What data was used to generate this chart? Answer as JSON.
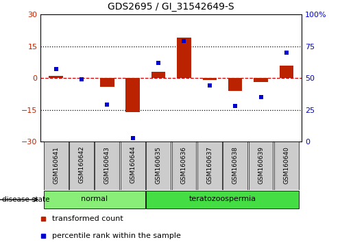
{
  "title": "GDS2695 / GI_31542649-S",
  "samples": [
    "GSM160641",
    "GSM160642",
    "GSM160643",
    "GSM160644",
    "GSM160635",
    "GSM160636",
    "GSM160637",
    "GSM160638",
    "GSM160639",
    "GSM160640"
  ],
  "transformed_count": [
    1.0,
    0.0,
    -4.0,
    -16.0,
    3.0,
    19.0,
    -1.0,
    -6.0,
    -2.0,
    6.0
  ],
  "percentile_rank": [
    57,
    49,
    29,
    3,
    62,
    79,
    44,
    28,
    35,
    70
  ],
  "disease_groups": [
    {
      "label": "normal",
      "indices": [
        0,
        1,
        2,
        3
      ],
      "color": "#88ee77"
    },
    {
      "label": "teratozoospermia",
      "indices": [
        4,
        5,
        6,
        7,
        8,
        9
      ],
      "color": "#44dd44"
    }
  ],
  "left_ylim": [
    -30,
    30
  ],
  "left_yticks": [
    -30,
    -15,
    0,
    15,
    30
  ],
  "right_ylim": [
    0,
    100
  ],
  "right_yticks": [
    0,
    25,
    50,
    75,
    100
  ],
  "right_yticklabels": [
    "0",
    "25",
    "50",
    "75",
    "100%"
  ],
  "bar_color": "#bb2200",
  "dot_color": "#0000cc",
  "zero_line_color": "#cc0000",
  "grid_color": "#000000",
  "bg_color": "#ffffff",
  "plot_bg": "#ffffff",
  "sample_box_color": "#cccccc",
  "legend_items": [
    {
      "label": "transformed count",
      "color": "#bb2200"
    },
    {
      "label": "percentile rank within the sample",
      "color": "#0000cc"
    }
  ],
  "disease_state_label": "disease state",
  "bar_width": 0.55
}
